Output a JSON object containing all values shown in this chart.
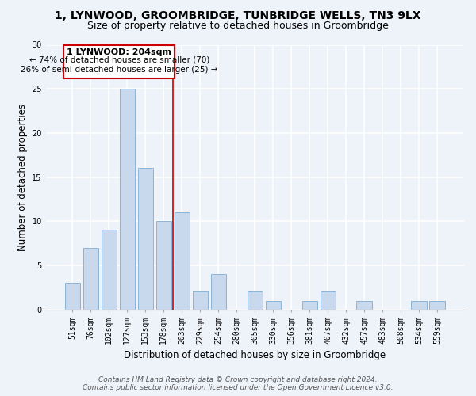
{
  "title": "1, LYNWOOD, GROOMBRIDGE, TUNBRIDGE WELLS, TN3 9LX",
  "subtitle": "Size of property relative to detached houses in Groombridge",
  "xlabel": "Distribution of detached houses by size in Groombridge",
  "ylabel": "Number of detached properties",
  "bar_labels": [
    "51sqm",
    "76sqm",
    "102sqm",
    "127sqm",
    "153sqm",
    "178sqm",
    "203sqm",
    "229sqm",
    "254sqm",
    "280sqm",
    "305sqm",
    "330sqm",
    "356sqm",
    "381sqm",
    "407sqm",
    "432sqm",
    "457sqm",
    "483sqm",
    "508sqm",
    "534sqm",
    "559sqm"
  ],
  "bar_values": [
    3,
    7,
    9,
    25,
    16,
    10,
    11,
    2,
    4,
    0,
    2,
    1,
    0,
    1,
    2,
    0,
    1,
    0,
    0,
    1,
    1
  ],
  "bar_color": "#c8d9ee",
  "bar_edge_color": "#8ab4d8",
  "vline_x": 5.5,
  "vline_color": "#cc0000",
  "annotation_line1": "1 LYNWOOD: 204sqm",
  "annotation_line2": "← 74% of detached houses are smaller (70)",
  "annotation_line3": "26% of semi-detached houses are larger (25) →",
  "annotation_box_color": "#ffffff",
  "annotation_box_edge": "#cc0000",
  "ylim": [
    0,
    30
  ],
  "yticks": [
    0,
    5,
    10,
    15,
    20,
    25,
    30
  ],
  "footer_line1": "Contains HM Land Registry data © Crown copyright and database right 2024.",
  "footer_line2": "Contains public sector information licensed under the Open Government Licence v3.0.",
  "bg_color": "#eef2f9",
  "plot_bg_color": "#eef2f9",
  "title_fontsize": 10,
  "subtitle_fontsize": 9,
  "axis_label_fontsize": 8.5,
  "tick_fontsize": 7,
  "footer_fontsize": 6.5,
  "ann_fontsize_bold": 8,
  "ann_fontsize": 7.5
}
